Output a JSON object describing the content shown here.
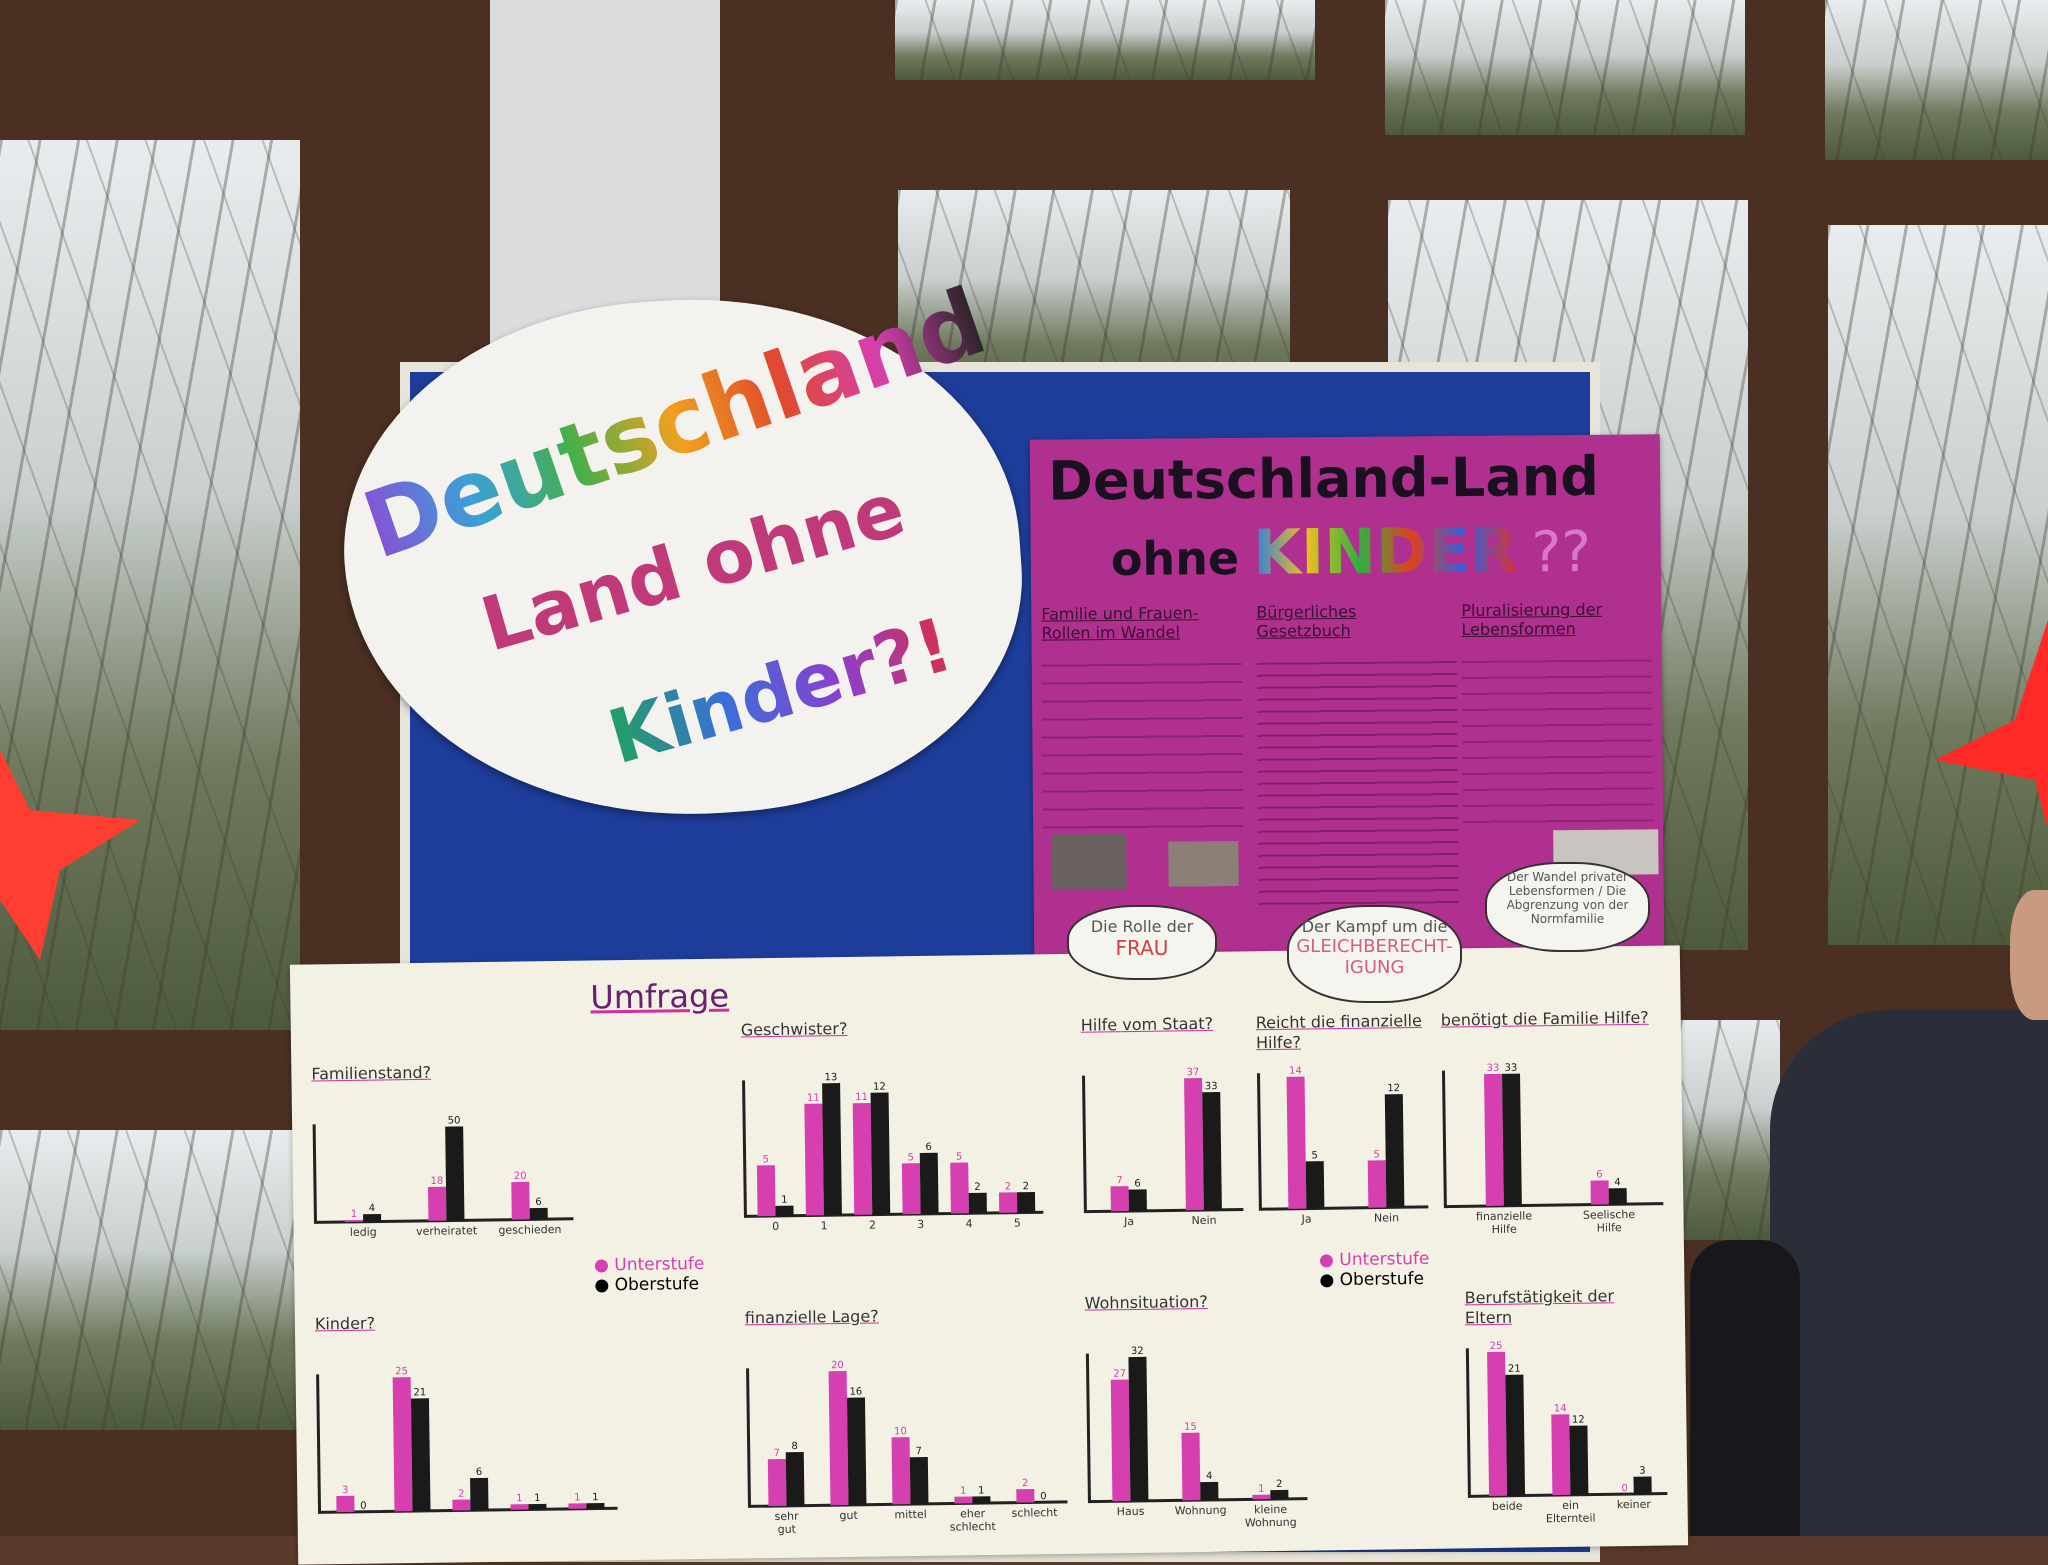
{
  "bubble_sign": {
    "line1": "Deutschland",
    "line2": "Land ohne",
    "line3": "Kinder?!"
  },
  "pink_poster": {
    "title_line1": "Deutschland-Land",
    "title_ohne": "ohne",
    "title_kinder": "KINDER",
    "title_marks": "??",
    "columns": [
      {
        "heading": "Familie und Frauen-Rollen im Wandel"
      },
      {
        "heading": "Bürgerliches Gesetzbuch"
      },
      {
        "heading": "Pluralisierung der Lebensformen"
      }
    ],
    "clouds": [
      {
        "line1": "Die Rolle der",
        "line2": "FRAU"
      },
      {
        "line1": "Der Kampf um die",
        "line2": "GLEICHBERECHT-IGUNG"
      },
      {
        "line1": "Der Wandel privater Lebensformen / Die Abgrenzung von der Normfamilie",
        "line2": ""
      }
    ]
  },
  "survey_poster": {
    "title": "Umfrage",
    "legend": [
      {
        "label": "Unterstufe",
        "color": "#d63fb0"
      },
      {
        "label": "Oberstufe",
        "color": "#1a1a1a"
      }
    ],
    "colors": {
      "unterstufe": "#d63fb0",
      "oberstufe": "#1a1a1a"
    },
    "charts": [
      {
        "title": "Familienstand?",
        "categories": [
          "ledig",
          "verheiratet",
          "geschieden"
        ],
        "unterstufe": [
          1,
          18,
          20
        ],
        "oberstufe": [
          4,
          50,
          6
        ]
      },
      {
        "title": "Geschwister?",
        "categories": [
          "0",
          "1",
          "2",
          "3",
          "4",
          "5"
        ],
        "unterstufe": [
          5,
          11,
          11,
          5,
          5,
          2
        ],
        "oberstufe": [
          1,
          13,
          12,
          6,
          2,
          2
        ]
      },
      {
        "title": "Kinder?",
        "categories": [
          "",
          "",
          "",
          "",
          ""
        ],
        "unterstufe": [
          3,
          25,
          2,
          1,
          1
        ],
        "oberstufe": [
          0,
          21,
          6,
          1,
          1
        ]
      },
      {
        "title": "finanzielle Lage?",
        "categories": [
          "sehr gut",
          "gut",
          "mittel",
          "eher schlecht",
          "schlecht"
        ],
        "unterstufe": [
          7,
          20,
          10,
          1,
          2
        ],
        "oberstufe": [
          8,
          16,
          7,
          1,
          0
        ]
      },
      {
        "title": "Hilfe vom Staat?",
        "categories": [
          "Ja",
          "Nein"
        ],
        "unterstufe": [
          7,
          37
        ],
        "oberstufe": [
          6,
          33
        ]
      },
      {
        "title": "Reicht die finanzielle Hilfe?",
        "categories": [
          "Ja",
          "Nein"
        ],
        "unterstufe": [
          14,
          5
        ],
        "oberstufe": [
          5,
          12
        ]
      },
      {
        "title": "benötigt die Familie Hilfe?",
        "categories": [
          "finanzielle Hilfe",
          "Seelische Hilfe"
        ],
        "unterstufe": [
          33,
          6
        ],
        "oberstufe": [
          33,
          4
        ]
      },
      {
        "title": "Wohnsituation?",
        "categories": [
          "Haus",
          "Wohnung",
          "kleine Wohnung"
        ],
        "unterstufe": [
          27,
          15,
          1
        ],
        "oberstufe": [
          32,
          4,
          2
        ]
      },
      {
        "title": "Berufstätigkeit der Eltern",
        "categories": [
          "beide",
          "ein Elternteil",
          "keiner"
        ],
        "unterstufe": [
          25,
          14,
          0
        ],
        "oberstufe": [
          21,
          12,
          3
        ]
      }
    ]
  }
}
